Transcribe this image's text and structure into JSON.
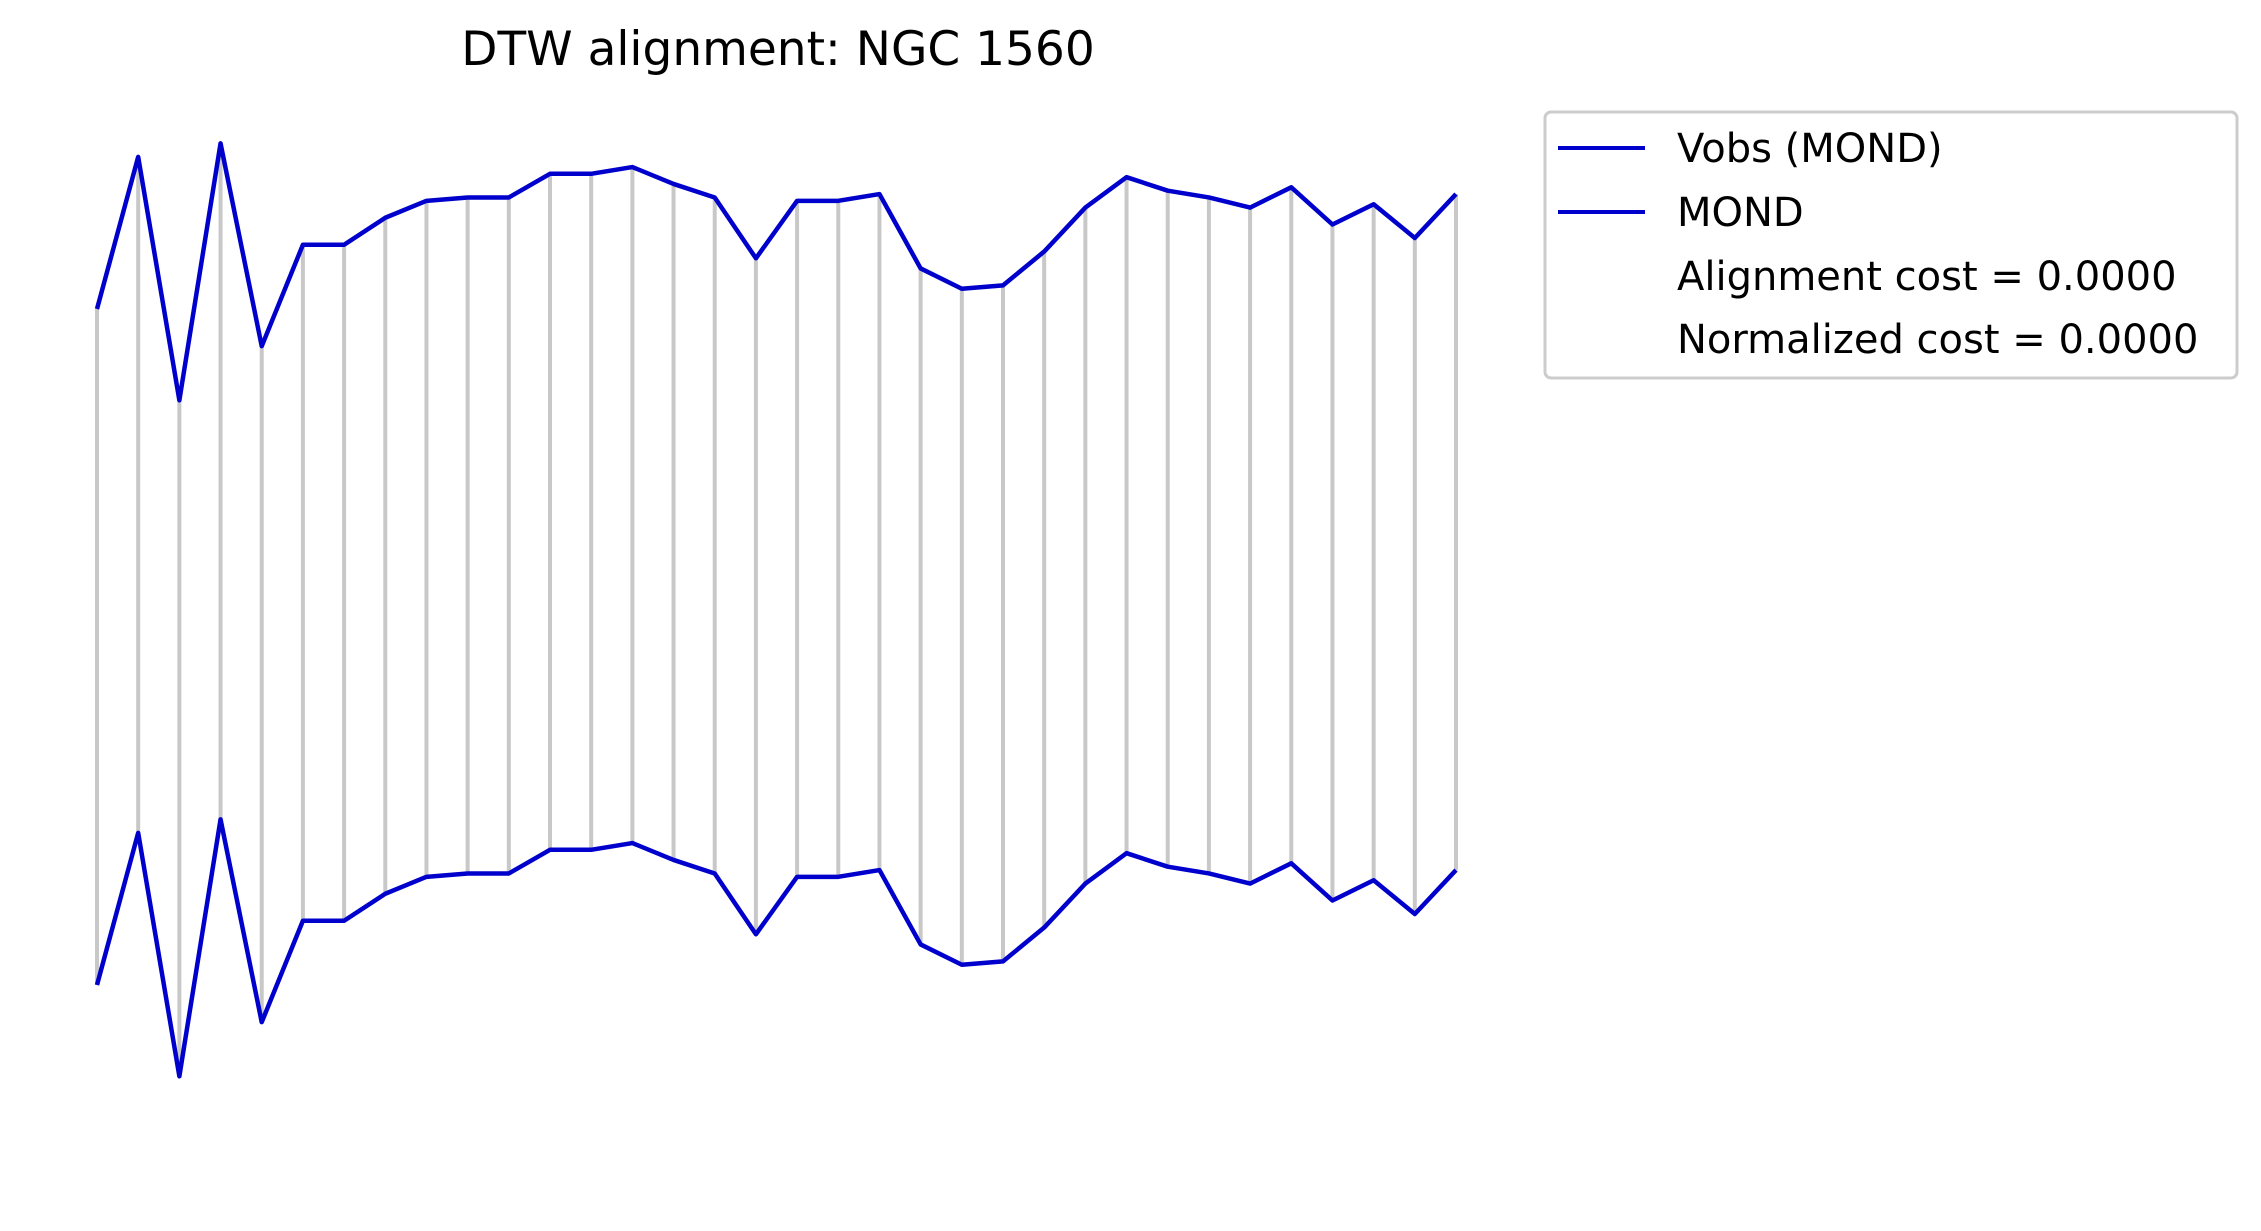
{
  "chart_data": {
    "type": "line",
    "title": "DTW alignment: NGC 1560",
    "xlabel": "",
    "ylabel": "",
    "axes_visible": false,
    "grid": false,
    "legend_placement": "outside-top-right",
    "colors": {
      "series": "#0000cc",
      "alignment_link": "#c8c8c8"
    },
    "series": [
      {
        "name": "Vobs (MOND)",
        "values": [
          0.5,
          0.95,
          0.23,
          0.99,
          0.39,
          0.69,
          0.69,
          0.77,
          0.82,
          0.83,
          0.83,
          0.9,
          0.9,
          0.92,
          0.87,
          0.83,
          0.65,
          0.82,
          0.82,
          0.84,
          0.62,
          0.56,
          0.57,
          0.67,
          0.8,
          0.89,
          0.85,
          0.83,
          0.8,
          0.86,
          0.75,
          0.81,
          0.71,
          0.84
        ]
      },
      {
        "name": "MOND",
        "values": [
          0.5,
          0.95,
          0.23,
          0.99,
          0.39,
          0.69,
          0.69,
          0.77,
          0.82,
          0.83,
          0.83,
          0.9,
          0.9,
          0.92,
          0.87,
          0.83,
          0.65,
          0.82,
          0.82,
          0.84,
          0.62,
          0.56,
          0.57,
          0.67,
          0.8,
          0.89,
          0.85,
          0.83,
          0.8,
          0.86,
          0.75,
          0.81,
          0.71,
          0.84
        ]
      }
    ],
    "alignment": "one-to-one",
    "legend_notes": [
      "Alignment cost = 0.0000",
      "Normalized cost = 0.0000"
    ]
  }
}
